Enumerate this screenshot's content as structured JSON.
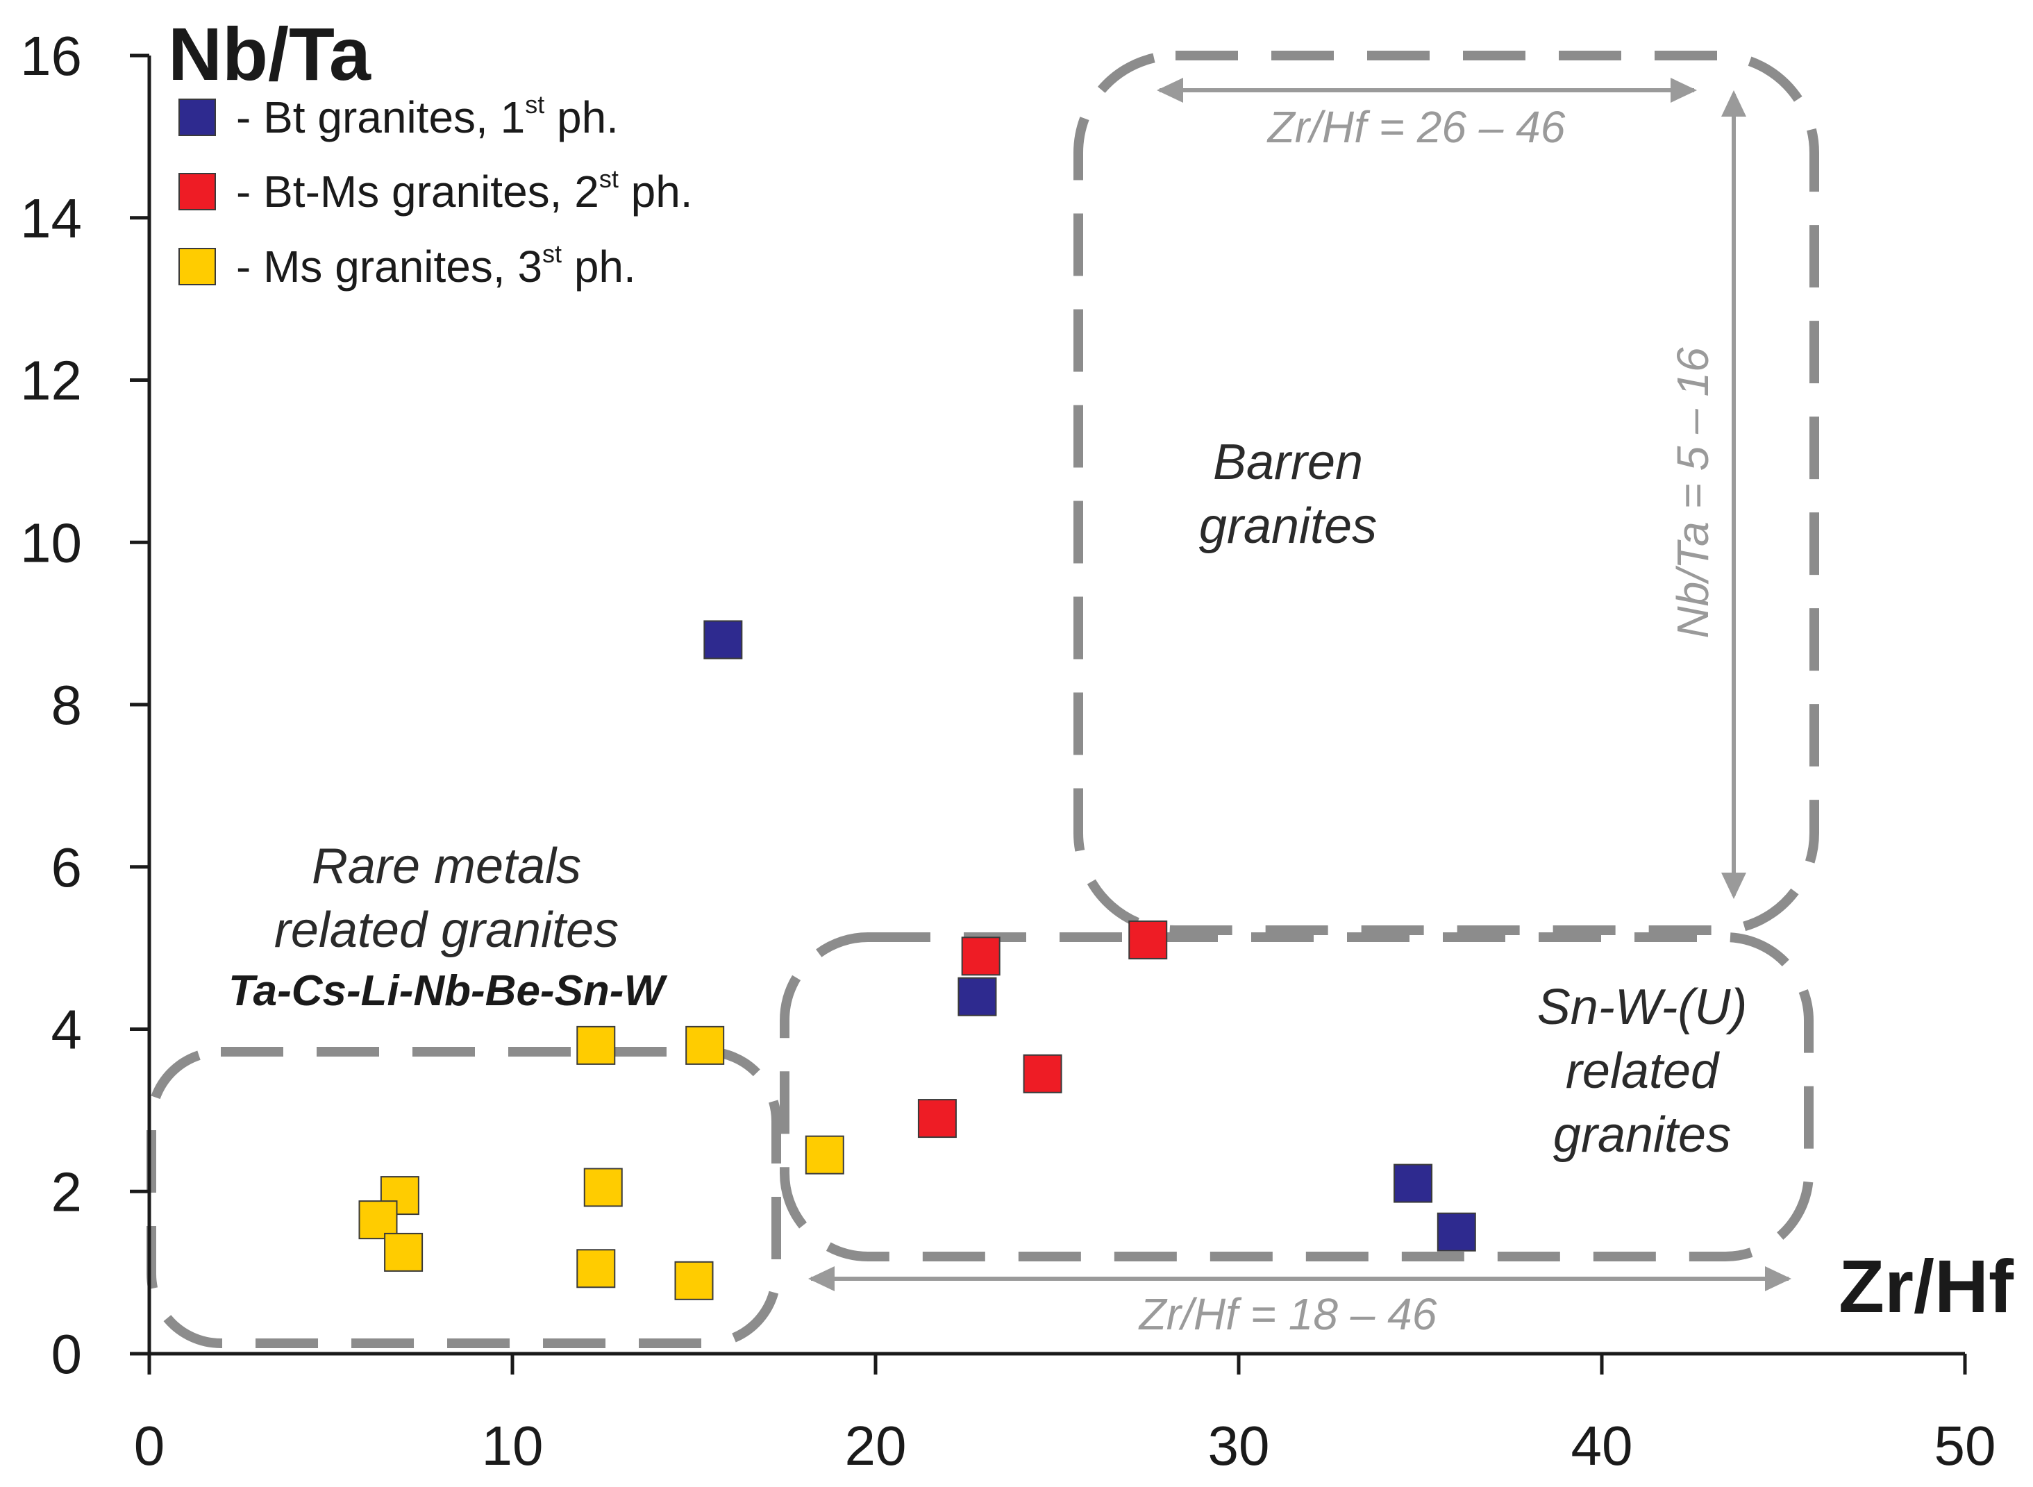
{
  "chart_data": {
    "type": "scatter",
    "title": "",
    "xlabel": "Zr/Hf",
    "ylabel": "Nb/Ta",
    "xlim": [
      0,
      50
    ],
    "ylim": [
      0,
      16
    ],
    "xticks": [
      "0",
      "10",
      "20",
      "30",
      "40",
      "50"
    ],
    "yticks": [
      "0",
      "2",
      "4",
      "6",
      "8",
      "10",
      "12",
      "14",
      "16"
    ],
    "grid": false,
    "legend_position": "top-left",
    "series": [
      {
        "name": "Bt granites, 1st ph.",
        "legend_prefix": "- Bt granites, 1",
        "legend_sup": "st",
        "legend_suffix": " ph.",
        "color": "#2e2a8f",
        "points": [
          [
            15.8,
            8.8
          ],
          [
            22.8,
            4.4
          ],
          [
            34.8,
            2.1
          ],
          [
            36.0,
            1.5
          ]
        ]
      },
      {
        "name": "Bt-Ms granites, 2st ph.",
        "legend_prefix": "- Bt-Ms granites, 2",
        "legend_sup": "st",
        "legend_suffix": " ph.",
        "color": "#ee1c25",
        "points": [
          [
            22.9,
            4.9
          ],
          [
            27.5,
            5.1
          ],
          [
            24.6,
            3.45
          ],
          [
            21.7,
            2.9
          ]
        ]
      },
      {
        "name": "Ms granites, 3st ph.",
        "legend_prefix": "- Ms granites, 3",
        "legend_sup": "st",
        "legend_suffix": " ph.",
        "color": "#ffcc00",
        "points": [
          [
            12.3,
            3.8
          ],
          [
            15.3,
            3.8
          ],
          [
            18.6,
            2.45
          ],
          [
            12.5,
            2.05
          ],
          [
            6.9,
            1.95
          ],
          [
            6.3,
            1.65
          ],
          [
            7.0,
            1.25
          ],
          [
            12.3,
            1.05
          ],
          [
            15.0,
            0.9
          ]
        ]
      }
    ],
    "regions": [
      {
        "name": "barren",
        "lines": [
          "Barren",
          "granites"
        ],
        "x_range": [
          26,
          46
        ],
        "y_range": [
          5,
          16
        ],
        "x_range_label": "Zr/Hf = 26 – 46",
        "y_range_label": "Nb/Ta = 5 – 16"
      },
      {
        "name": "sn-w-u",
        "lines": [
          "Sn-W-(U)",
          "related",
          "granites"
        ],
        "x_range": [
          18,
          46
        ],
        "x_range_label": "Zr/Hf = 18 – 46"
      },
      {
        "name": "rare-metals",
        "lines": [
          "Rare metals",
          "related granites"
        ],
        "subtitle": "Ta-Cs-Li-Nb-Be-Sn-W"
      }
    ]
  }
}
